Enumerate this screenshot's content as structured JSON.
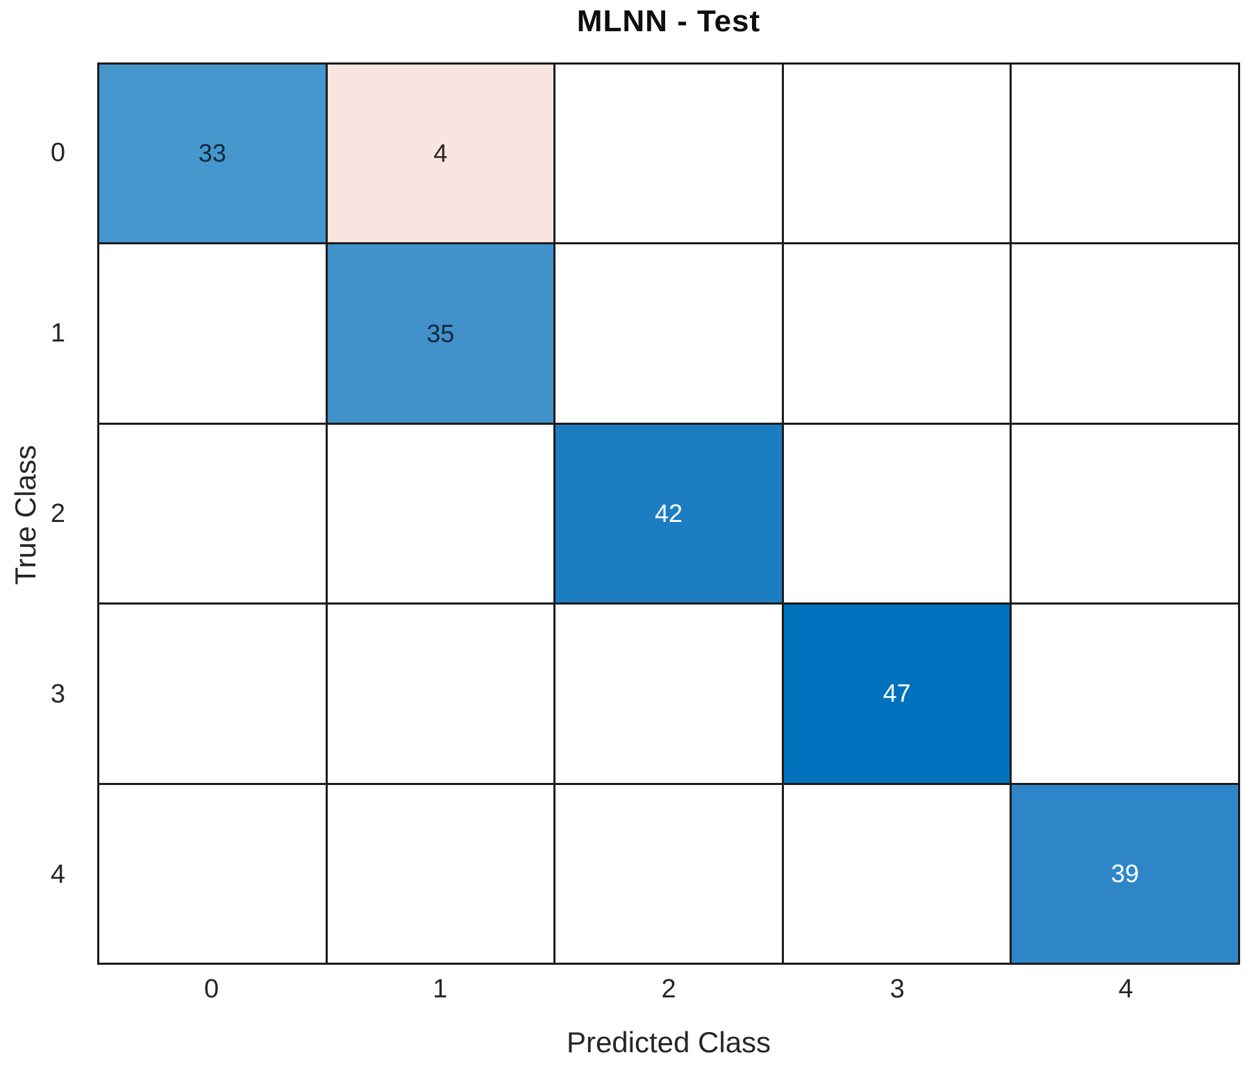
{
  "title": "MLNN - Test",
  "axes": {
    "xlabel": "Predicted Class",
    "ylabel": "True Class",
    "xticks": [
      "0",
      "1",
      "2",
      "3",
      "4"
    ],
    "yticks": [
      "0",
      "1",
      "2",
      "3",
      "4"
    ]
  },
  "colors": {
    "grid_line": "#1c1c1c",
    "empty_cell": "#ffffff",
    "diagonal_min": "#4697ce",
    "diagonal_max": "#0071bc",
    "off_diagonal": "#f9e5e0",
    "dark_text": "#10283e",
    "light_text": "#ffffff",
    "axis_text": "#262626"
  },
  "chart_data": {
    "type": "heatmap",
    "subtype": "confusion-matrix",
    "title": "MLNN - Test",
    "xlabel": "Predicted Class",
    "ylabel": "True Class",
    "x_categories": [
      "0",
      "1",
      "2",
      "3",
      "4"
    ],
    "y_categories": [
      "0",
      "1",
      "2",
      "3",
      "4"
    ],
    "matrix": [
      [
        33,
        4,
        null,
        null,
        null
      ],
      [
        null,
        35,
        null,
        null,
        null
      ],
      [
        null,
        null,
        42,
        null,
        null
      ],
      [
        null,
        null,
        null,
        47,
        null
      ],
      [
        null,
        null,
        null,
        null,
        39
      ]
    ],
    "cells": [
      {
        "row": "0",
        "col": "0",
        "v": "33",
        "bg": "#4697ce",
        "fg": "#10283e"
      },
      {
        "row": "0",
        "col": "1",
        "v": "4",
        "bg": "#f9e5e0",
        "fg": "#262626"
      },
      {
        "row": "0",
        "col": "2",
        "v": "",
        "bg": "#ffffff",
        "fg": "#262626"
      },
      {
        "row": "0",
        "col": "3",
        "v": "",
        "bg": "#ffffff",
        "fg": "#262626"
      },
      {
        "row": "0",
        "col": "4",
        "v": "",
        "bg": "#ffffff",
        "fg": "#262626"
      },
      {
        "row": "1",
        "col": "0",
        "v": "",
        "bg": "#ffffff",
        "fg": "#262626"
      },
      {
        "row": "1",
        "col": "1",
        "v": "35",
        "bg": "#4191cb",
        "fg": "#10283e"
      },
      {
        "row": "1",
        "col": "2",
        "v": "",
        "bg": "#ffffff",
        "fg": "#262626"
      },
      {
        "row": "1",
        "col": "3",
        "v": "",
        "bg": "#ffffff",
        "fg": "#262626"
      },
      {
        "row": "1",
        "col": "4",
        "v": "",
        "bg": "#ffffff",
        "fg": "#262626"
      },
      {
        "row": "2",
        "col": "0",
        "v": "",
        "bg": "#ffffff",
        "fg": "#262626"
      },
      {
        "row": "2",
        "col": "1",
        "v": "",
        "bg": "#ffffff",
        "fg": "#262626"
      },
      {
        "row": "2",
        "col": "2",
        "v": "42",
        "bg": "#1c7dc2",
        "fg": "#ffffff"
      },
      {
        "row": "2",
        "col": "3",
        "v": "",
        "bg": "#ffffff",
        "fg": "#262626"
      },
      {
        "row": "2",
        "col": "4",
        "v": "",
        "bg": "#ffffff",
        "fg": "#262626"
      },
      {
        "row": "3",
        "col": "0",
        "v": "",
        "bg": "#ffffff",
        "fg": "#262626"
      },
      {
        "row": "3",
        "col": "1",
        "v": "",
        "bg": "#ffffff",
        "fg": "#262626"
      },
      {
        "row": "3",
        "col": "2",
        "v": "",
        "bg": "#ffffff",
        "fg": "#262626"
      },
      {
        "row": "3",
        "col": "3",
        "v": "47",
        "bg": "#0071bc",
        "fg": "#ffffff"
      },
      {
        "row": "3",
        "col": "4",
        "v": "",
        "bg": "#ffffff",
        "fg": "#262626"
      },
      {
        "row": "4",
        "col": "0",
        "v": "",
        "bg": "#ffffff",
        "fg": "#262626"
      },
      {
        "row": "4",
        "col": "1",
        "v": "",
        "bg": "#ffffff",
        "fg": "#262626"
      },
      {
        "row": "4",
        "col": "2",
        "v": "",
        "bg": "#ffffff",
        "fg": "#262626"
      },
      {
        "row": "4",
        "col": "3",
        "v": "",
        "bg": "#ffffff",
        "fg": "#262626"
      },
      {
        "row": "4",
        "col": "4",
        "v": "39",
        "bg": "#2e86c8",
        "fg": "#ffffff"
      }
    ]
  }
}
